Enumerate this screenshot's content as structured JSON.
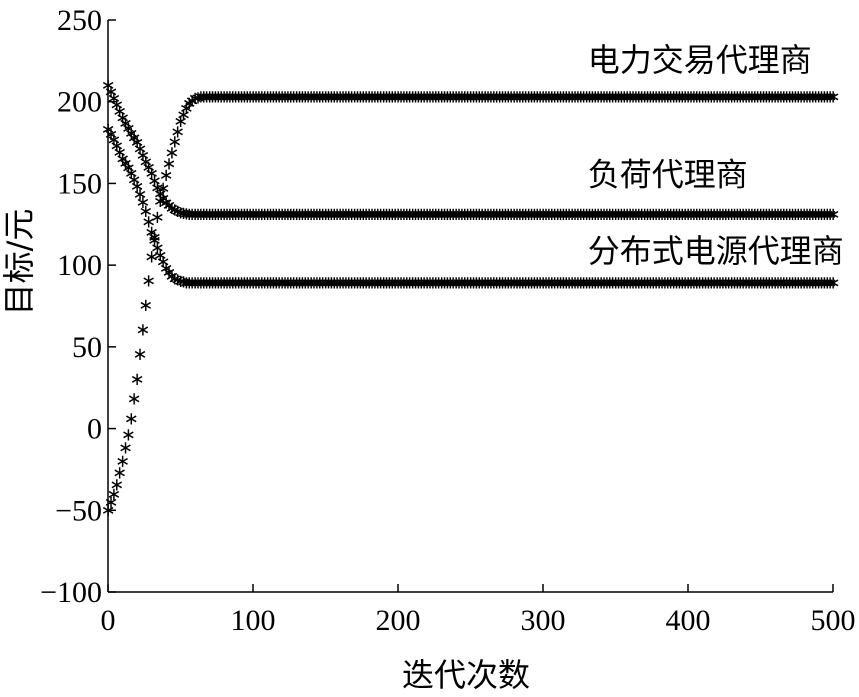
{
  "chart_data": {
    "type": "scatter",
    "xlabel": "迭代次数",
    "ylabel": "目标/元",
    "xlim": [
      0,
      500
    ],
    "ylim": [
      -100,
      250
    ],
    "xticks": [
      0,
      100,
      200,
      300,
      400,
      500
    ],
    "yticks": [
      -100,
      -50,
      0,
      50,
      100,
      150,
      200,
      250
    ],
    "xtick_labels": [
      "0",
      "100",
      "200",
      "300",
      "400",
      "500"
    ],
    "ytick_labels": [
      "−100",
      "−50",
      "0",
      "50",
      "100",
      "150",
      "200",
      "250"
    ],
    "grid": false,
    "marker": "*",
    "marker_glyph": "∗",
    "marker_color": "#000000",
    "series": [
      {
        "name": "电力交易代理商",
        "x": [
          0,
          5,
          10,
          15,
          20,
          25,
          30,
          35,
          40,
          45,
          50,
          55,
          60,
          65,
          70,
          80,
          100,
          150,
          200,
          250,
          300,
          350,
          400,
          450,
          500
        ],
        "y": [
          -50,
          -38,
          -20,
          0,
          30,
          68,
          105,
          135,
          155,
          172,
          188,
          198,
          202,
          203,
          203,
          203,
          203,
          203,
          203,
          203,
          203,
          203,
          203,
          203,
          203
        ]
      },
      {
        "name": "负荷代理商",
        "x": [
          0,
          5,
          10,
          15,
          20,
          25,
          30,
          35,
          40,
          45,
          50,
          55,
          60,
          65,
          70,
          80,
          100,
          150,
          200,
          250,
          300,
          350,
          400,
          450,
          500
        ],
        "y": [
          210,
          200,
          190,
          182,
          175,
          165,
          156,
          145,
          138,
          134,
          132,
          131,
          131,
          131,
          131,
          131,
          131,
          131,
          131,
          131,
          131,
          131,
          131,
          131,
          131
        ]
      },
      {
        "name": "分布式电源代理商",
        "x": [
          0,
          5,
          10,
          15,
          20,
          25,
          30,
          35,
          40,
          45,
          50,
          55,
          60,
          65,
          70,
          80,
          100,
          150,
          200,
          250,
          300,
          350,
          400,
          450,
          500
        ],
        "y": [
          183,
          175,
          165,
          158,
          148,
          136,
          120,
          108,
          98,
          92,
          90,
          89,
          89,
          89,
          89,
          89,
          89,
          89,
          89,
          89,
          89,
          89,
          89,
          89,
          89
        ]
      }
    ],
    "annotations": [
      {
        "text": "电力交易代理商",
        "x": 255,
        "y": 225
      },
      {
        "text": "负荷代理商",
        "x": 255,
        "y": 155
      },
      {
        "text": "分布式电源代理商",
        "x": 255,
        "y": 108
      }
    ]
  }
}
